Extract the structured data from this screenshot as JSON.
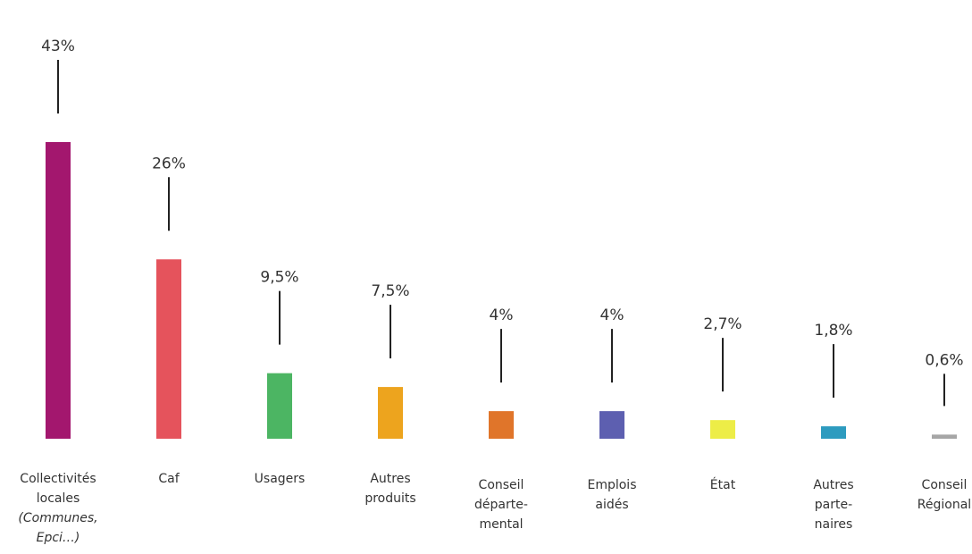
{
  "chart_data": {
    "type": "bar",
    "title": "",
    "xlabel": "",
    "ylabel": "",
    "ylim": [
      0,
      43
    ],
    "grid": false,
    "legend": "none",
    "categories": [
      {
        "lines": [
          "Collectivités",
          "locales"
        ],
        "note_lines": [
          "(Communes,",
          "Epci…)"
        ],
        "value": 43,
        "value_label": "43%",
        "color": "#a3176e"
      },
      {
        "lines": [
          "Caf"
        ],
        "note_lines": [],
        "value": 26,
        "value_label": "26%",
        "color": "#e5535c"
      },
      {
        "lines": [
          "Usagers"
        ],
        "note_lines": [],
        "value": 9.5,
        "value_label": "9,5%",
        "color": "#4cb563"
      },
      {
        "lines": [
          "Autres",
          "produits"
        ],
        "note_lines": [],
        "value": 7.5,
        "value_label": "7,5%",
        "color": "#eda41e"
      },
      {
        "lines": [
          "Conseil",
          "départe-",
          "mental"
        ],
        "note_lines": [],
        "value": 4,
        "value_label": "4%",
        "color": "#e0752a"
      },
      {
        "lines": [
          "Emplois",
          "aidés"
        ],
        "note_lines": [],
        "value": 4,
        "value_label": "4%",
        "color": "#5d5fb0"
      },
      {
        "lines": [
          "État"
        ],
        "note_lines": [],
        "value": 2.7,
        "value_label": "2,7%",
        "color": "#eded47"
      },
      {
        "lines": [
          "Autres",
          "parte-",
          "naires"
        ],
        "note_lines": [],
        "value": 1.8,
        "value_label": "1,8%",
        "color": "#2d9bbf"
      },
      {
        "lines": [
          "Conseil",
          "Régional"
        ],
        "note_lines": [],
        "value": 0.6,
        "value_label": "0,6%",
        "color": "#a6a6a6"
      }
    ]
  }
}
